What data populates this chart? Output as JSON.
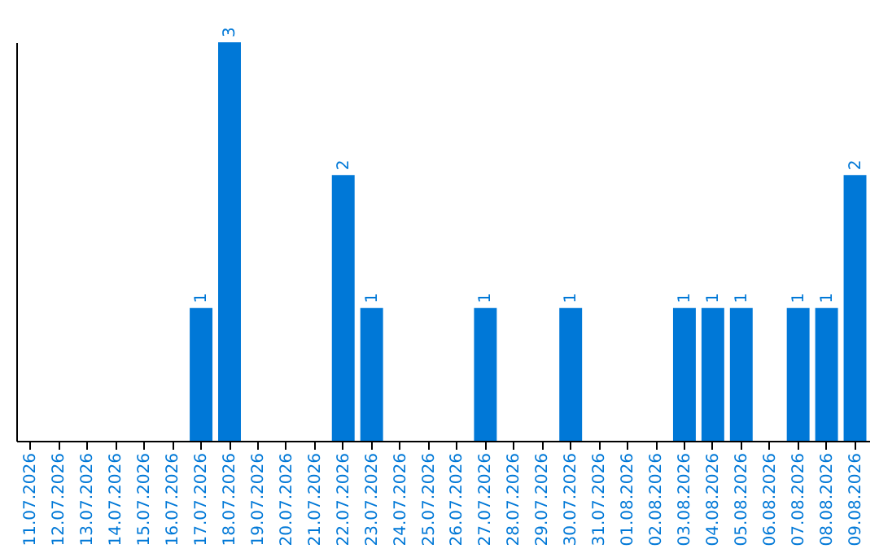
{
  "chart_data": {
    "type": "bar",
    "categories": [
      "11.07.2026",
      "12.07.2026",
      "13.07.2026",
      "14.07.2026",
      "15.07.2026",
      "16.07.2026",
      "17.07.2026",
      "18.07.2026",
      "19.07.2026",
      "20.07.2026",
      "21.07.2026",
      "22.07.2026",
      "23.07.2026",
      "24.07.2026",
      "25.07.2026",
      "26.07.2026",
      "27.07.2026",
      "28.07.2026",
      "29.07.2026",
      "30.07.2026",
      "31.07.2026",
      "01.08.2026",
      "02.08.2026",
      "03.08.2026",
      "04.08.2026",
      "05.08.2026",
      "06.08.2026",
      "07.08.2026",
      "08.08.2026",
      "09.08.2026"
    ],
    "values": [
      0,
      0,
      0,
      0,
      0,
      0,
      1,
      3,
      0,
      0,
      0,
      2,
      1,
      0,
      0,
      0,
      1,
      0,
      0,
      1,
      0,
      0,
      0,
      1,
      1,
      1,
      0,
      1,
      1,
      2
    ],
    "value_labels": [
      null,
      null,
      null,
      null,
      null,
      null,
      "1",
      "3",
      null,
      null,
      null,
      "2",
      "1",
      null,
      null,
      null,
      "1",
      null,
      null,
      "1",
      null,
      null,
      null,
      "1",
      "1",
      "1",
      null,
      "1",
      "1",
      "2"
    ],
    "color": "#0078d7"
  }
}
